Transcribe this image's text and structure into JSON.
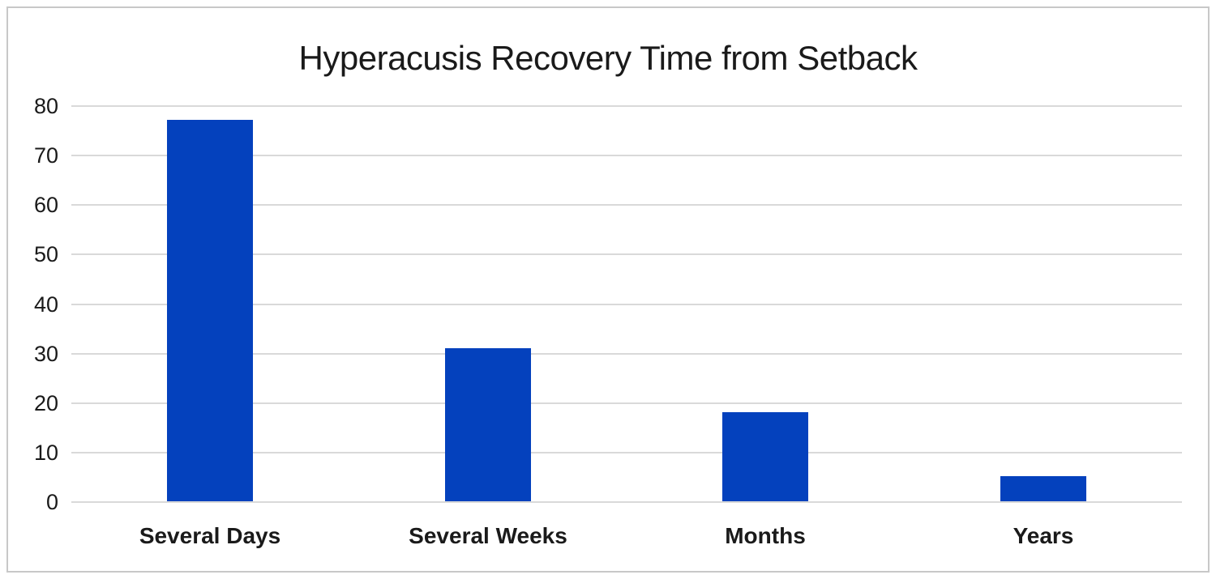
{
  "chart_data": {
    "type": "bar",
    "title": "Hyperacusis Recovery Time from Setback",
    "categories": [
      "Several Days",
      "Several Weeks",
      "Months",
      "Years"
    ],
    "values": [
      77,
      31,
      18,
      5
    ],
    "xlabel": "",
    "ylabel": "",
    "ylim": [
      0,
      80
    ],
    "yticks": [
      0,
      10,
      20,
      30,
      40,
      50,
      60,
      70,
      80
    ],
    "grid": "horizontal",
    "legend": "none",
    "bar_color": "#0441bd"
  },
  "colors": {
    "bar": "#0441bd",
    "gridline": "#d9d9d9",
    "frame_border": "#c8c8c8",
    "text": "#1a1a1a",
    "background": "#ffffff"
  }
}
